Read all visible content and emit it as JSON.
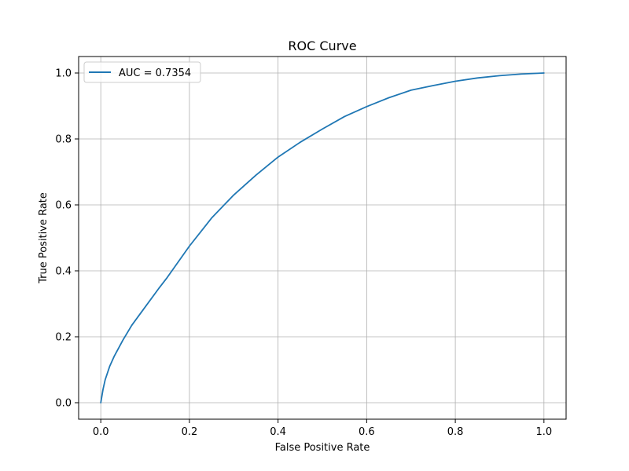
{
  "chart_data": {
    "type": "line",
    "title": "ROC Curve",
    "xlabel": "False Positive Rate",
    "ylabel": "True Positive Rate",
    "xlim": [
      -0.05,
      1.05
    ],
    "ylim": [
      -0.05,
      1.05
    ],
    "grid": true,
    "legend_position": "top-left",
    "x_ticks": [
      "0.0",
      "0.2",
      "0.4",
      "0.6",
      "0.8",
      "1.0"
    ],
    "y_ticks": [
      "0.0",
      "0.2",
      "0.4",
      "0.6",
      "0.8",
      "1.0"
    ],
    "series": [
      {
        "name": "AUC = 0.7354",
        "color": "#1f77b4",
        "x": [
          0.0,
          0.005,
          0.01,
          0.02,
          0.03,
          0.05,
          0.07,
          0.1,
          0.13,
          0.15,
          0.2,
          0.25,
          0.3,
          0.35,
          0.4,
          0.45,
          0.5,
          0.55,
          0.6,
          0.65,
          0.7,
          0.75,
          0.8,
          0.85,
          0.9,
          0.95,
          1.0
        ],
        "y": [
          0.0,
          0.04,
          0.07,
          0.11,
          0.14,
          0.19,
          0.235,
          0.29,
          0.345,
          0.38,
          0.475,
          0.56,
          0.63,
          0.69,
          0.745,
          0.79,
          0.83,
          0.868,
          0.898,
          0.925,
          0.948,
          0.962,
          0.975,
          0.985,
          0.992,
          0.997,
          1.0
        ]
      }
    ]
  },
  "colors": {
    "grid": "#b0b0b0",
    "axis": "#000000",
    "background": "#ffffff"
  }
}
